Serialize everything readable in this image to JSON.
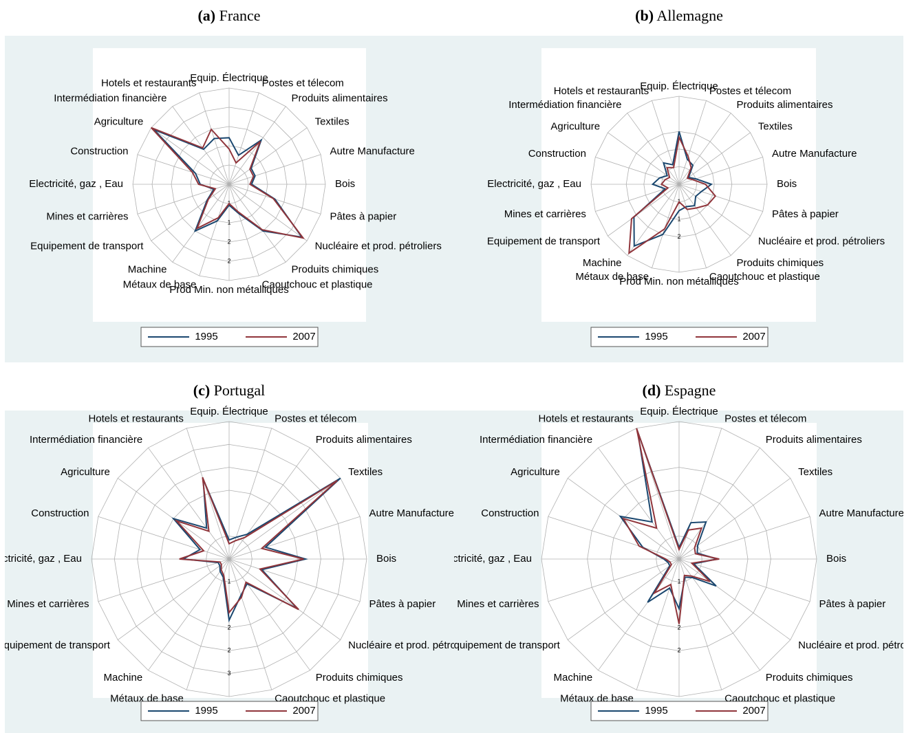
{
  "chart_data": [
    {
      "type": "radar",
      "panel": "(a)",
      "title": "France",
      "categories": [
        "Equip. Électrique",
        "Postes et télecom",
        "Produits alimentaires",
        "Textiles",
        "Autre Manufacture",
        "Bois",
        "Pâtes à papier",
        "Nucléaire et prod. pétroliers",
        "Produits chimiques",
        "Caoutchouc et plastique",
        "Prod Min. non métalliques",
        "Métaux de base",
        "Machine",
        "Equipement de transport",
        "Mines et carrières",
        "Electricité, gaz , Eau",
        "Construction",
        "Agriculture",
        "Intermédiation financière",
        "Hotels et restaurants"
      ],
      "series": [
        {
          "name": "1995",
          "color": "#1a476f",
          "values": [
            1.45,
            0.95,
            1.7,
            0.85,
            0.85,
            0.7,
            1.5,
            2.8,
            1.8,
            0.95,
            0.65,
            1.2,
            1.8,
            0.85,
            0.5,
            0.9,
            1.1,
            2.9,
            1.35,
            1.5
          ]
        },
        {
          "name": "2007",
          "color": "#90353b",
          "values": [
            1.1,
            0.7,
            1.65,
            0.8,
            0.8,
            0.65,
            1.45,
            2.85,
            1.75,
            0.9,
            0.6,
            1.1,
            1.7,
            0.8,
            0.45,
            0.95,
            1.2,
            3.0,
            1.4,
            1.8
          ]
        }
      ],
      "rlim": [
        0,
        3
      ],
      "rticks": [
        {
          "value": 0.6,
          "label": "1"
        },
        {
          "value": 1.2,
          "label": "1"
        },
        {
          "value": 1.8,
          "label": "2"
        },
        {
          "value": 2.4,
          "label": "2"
        }
      ]
    },
    {
      "type": "radar",
      "panel": "(b)",
      "title": "Allemagne",
      "categories": [
        "Equip. Électrique",
        "Postes et télecom",
        "Produits alimentaires",
        "Textiles",
        "Autre Manufacture",
        "Bois",
        "Pâtes à papier",
        "Nucléaire et prod. pétroliers",
        "Produits chimiques",
        "Caoutchouc et plastique",
        "Prod Min. non métalliques",
        "Métaux de base",
        "Machine",
        "Equipement de transport",
        "Mines et carrières",
        "Electricité, gaz , Eau",
        "Construction",
        "Agriculture",
        "Intermédiation financière",
        "Hotels et restaurants"
      ],
      "series": [
        {
          "name": "1995",
          "color": "#1a476f",
          "values": [
            1.8,
            0.9,
            0.8,
            0.4,
            0.6,
            1.1,
            0.8,
            0.7,
            0.9,
            0.8,
            0.9,
            1.8,
            2.6,
            1.9,
            0.5,
            0.9,
            0.7,
            0.5,
            0.9,
            0.7
          ]
        },
        {
          "name": "2007",
          "color": "#90353b",
          "values": [
            1.6,
            1.0,
            0.7,
            0.35,
            0.5,
            0.9,
            1.3,
            1.2,
            1.0,
            0.9,
            0.6,
            1.6,
            2.9,
            2.0,
            0.4,
            0.6,
            0.5,
            0.4,
            0.7,
            0.6
          ]
        }
      ],
      "rlim": [
        0,
        3
      ],
      "rticks": [
        {
          "value": 0.6,
          "label": "1"
        },
        {
          "value": 1.2,
          "label": "1"
        },
        {
          "value": 1.8,
          "label": "2"
        }
      ]
    },
    {
      "type": "radar",
      "panel": "(c)",
      "title": "Portugal",
      "categories": [
        "Equip. Électrique",
        "Postes et télecom",
        "Produits alimentaires",
        "Textiles",
        "Autre Manufacture",
        "Bois",
        "Pâtes à papier",
        "Nucléaire et prod. pétroliers",
        "Produits chimiques",
        "Caoutchouc et plastique",
        "Prod Min. non métalliques",
        "Métaux de base",
        "Machine",
        "Equipement de transport",
        "Mines et carrières",
        "Electricité, gaz , Eau",
        "Construction",
        "Agriculture",
        "Intermédiation financière",
        "Hotels et restaurants"
      ],
      "series": [
        {
          "name": "1995",
          "color": "#1a476f",
          "values": [
            0.5,
            0.6,
            0.8,
            3.6,
            1.0,
            2.0,
            0.9,
            2.2,
            0.8,
            1.0,
            1.6,
            0.5,
            0.4,
            0.3,
            0.3,
            1.2,
            0.8,
            1.8,
            1.0,
            2.2
          ]
        },
        {
          "name": "2007",
          "color": "#90353b",
          "values": [
            0.4,
            0.5,
            0.7,
            3.5,
            0.9,
            1.95,
            0.85,
            2.25,
            0.75,
            1.05,
            1.4,
            0.45,
            0.35,
            0.25,
            0.25,
            1.3,
            0.7,
            1.7,
            0.9,
            2.25
          ]
        }
      ],
      "rlim": [
        0,
        3.6
      ],
      "rticks": [
        {
          "value": 0.6,
          "label": "1"
        },
        {
          "value": 1.8,
          "label": "2"
        },
        {
          "value": 2.4,
          "label": "2"
        },
        {
          "value": 3.0,
          "label": "3"
        }
      ]
    },
    {
      "type": "radar",
      "panel": "(d)",
      "title": "Espagne",
      "categories": [
        "Equip. Électrique",
        "Postes et télecom",
        "Produits alimentaires",
        "Textiles",
        "Autre Manufacture",
        "Bois",
        "Pâtes à papier",
        "Nucléaire et prod. pétroliers",
        "Produits chimiques",
        "Caoutchouc et plastique",
        "Prod Min. non métalliques",
        "Métaux de base",
        "Machine",
        "Equipement de transport",
        "Mines et carrières",
        "Electricité, gaz , Eau",
        "Construction",
        "Agriculture",
        "Intermédiation financière",
        "Hotels et restaurants"
      ],
      "series": [
        {
          "name": "1995",
          "color": "#1a476f",
          "values": [
            0.3,
            1.0,
            1.2,
            0.6,
            0.5,
            1.0,
            0.4,
            1.2,
            0.6,
            0.5,
            1.3,
            0.8,
            1.4,
            0.3,
            0.3,
            0.4,
            1.0,
            1.9,
            1.2,
            3.5
          ]
        },
        {
          "name": "2007",
          "color": "#90353b",
          "values": [
            0.25,
            0.8,
            1.0,
            0.5,
            0.45,
            1.05,
            0.35,
            1.0,
            0.55,
            0.45,
            1.7,
            0.7,
            1.1,
            0.25,
            0.25,
            0.35,
            1.1,
            1.8,
            1.0,
            3.6
          ]
        }
      ],
      "rlim": [
        0,
        3.6
      ],
      "rticks": [
        {
          "value": 0.6,
          "label": "1"
        },
        {
          "value": 1.8,
          "label": "2"
        },
        {
          "value": 2.4,
          "label": "2"
        }
      ]
    }
  ]
}
